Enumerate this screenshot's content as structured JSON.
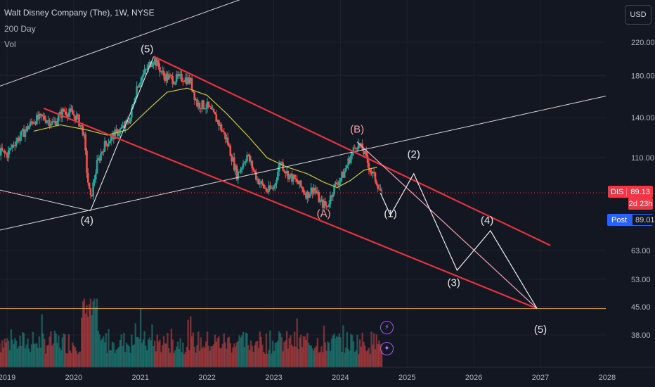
{
  "header": {
    "title": "Walt Disney Company (The), 1W, NYSE",
    "indicator_ma": "200 Day",
    "indicator_vol": "Vol"
  },
  "currency_button": "USD",
  "price_tags": {
    "ticker": "DIS",
    "last_price": "89.13",
    "countdown": "2d 23h",
    "post_label": "Post",
    "post_price": "89.01"
  },
  "side_icons": [
    "lightning-icon",
    "sparkle-icon"
  ],
  "chart_data": {
    "type": "candlestick",
    "title": "Walt Disney Company (The), 1W, NYSE",
    "y_scale": "log",
    "y_ticks": [
      220,
      180,
      140,
      110,
      63,
      53,
      45,
      38
    ],
    "y_tick_labels": [
      "220.00",
      "180.00",
      "140.00",
      "110.00",
      "63.00",
      "53.00",
      "45.00",
      "38.00"
    ],
    "x_ticks": [
      2019,
      2020,
      2021,
      2022,
      2023,
      2024,
      2025,
      2026,
      2027,
      2028
    ],
    "x_tick_labels": [
      "2019",
      "2020",
      "2021",
      "2022",
      "2023",
      "2024",
      "2025",
      "2026",
      "2027",
      "2028"
    ],
    "last_price": 89.13,
    "post_price": 89.01,
    "horizontal_line": 44.5,
    "price_path": [
      [
        2018.85,
        115
      ],
      [
        2019.0,
        112
      ],
      [
        2019.1,
        120
      ],
      [
        2019.25,
        128
      ],
      [
        2019.4,
        138
      ],
      [
        2019.55,
        140
      ],
      [
        2019.7,
        135
      ],
      [
        2019.85,
        146
      ],
      [
        2019.95,
        144
      ],
      [
        2020.05,
        140
      ],
      [
        2020.15,
        128
      ],
      [
        2020.2,
        100
      ],
      [
        2020.25,
        85
      ],
      [
        2020.35,
        106
      ],
      [
        2020.45,
        118
      ],
      [
        2020.6,
        126
      ],
      [
        2020.75,
        132
      ],
      [
        2020.85,
        140
      ],
      [
        2020.95,
        170
      ],
      [
        2021.05,
        182
      ],
      [
        2021.2,
        200
      ],
      [
        2021.35,
        180
      ],
      [
        2021.5,
        176
      ],
      [
        2021.65,
        178
      ],
      [
        2021.75,
        174
      ],
      [
        2021.85,
        152
      ],
      [
        2022.0,
        150
      ],
      [
        2022.15,
        138
      ],
      [
        2022.3,
        122
      ],
      [
        2022.45,
        99
      ],
      [
        2022.6,
        112
      ],
      [
        2022.75,
        97
      ],
      [
        2022.9,
        90
      ],
      [
        2023.0,
        92
      ],
      [
        2023.1,
        108
      ],
      [
        2023.2,
        100
      ],
      [
        2023.35,
        95
      ],
      [
        2023.5,
        88
      ],
      [
        2023.6,
        92
      ],
      [
        2023.7,
        84
      ],
      [
        2023.8,
        82
      ],
      [
        2023.9,
        92
      ],
      [
        2024.05,
        100
      ],
      [
        2024.15,
        111
      ],
      [
        2024.25,
        120
      ],
      [
        2024.35,
        114
      ],
      [
        2024.45,
        102
      ],
      [
        2024.55,
        95
      ],
      [
        2024.62,
        88
      ]
    ],
    "moving_average": {
      "name": "200 Day",
      "color": "#c9c93a",
      "points": [
        [
          2019.4,
          129
        ],
        [
          2019.8,
          134
        ],
        [
          2020.2,
          130
        ],
        [
          2020.5,
          126
        ],
        [
          2020.8,
          130
        ],
        [
          2021.1,
          146
        ],
        [
          2021.4,
          163
        ],
        [
          2021.7,
          167
        ],
        [
          2022.0,
          160
        ],
        [
          2022.3,
          143
        ],
        [
          2022.6,
          126
        ],
        [
          2022.9,
          110
        ],
        [
          2023.2,
          104
        ],
        [
          2023.5,
          100
        ],
        [
          2023.75,
          95
        ],
        [
          2023.95,
          92
        ],
        [
          2024.15,
          96
        ],
        [
          2024.35,
          102
        ],
        [
          2024.55,
          104
        ]
      ]
    },
    "channel": {
      "color": "#e0343f",
      "upper": [
        [
          2021.2,
          202
        ],
        [
          2027.15,
          65
        ]
      ],
      "lower_start": [
        2019.55,
        148
      ],
      "lower_end": [
        2026.95,
        44.5
      ]
    },
    "wave_labels": [
      {
        "text": "(5)",
        "x": 2021.1,
        "y": 207,
        "color": "#e8e8e8"
      },
      {
        "text": "(4)",
        "x": 2020.2,
        "y": 74,
        "color": "#e8e8e8"
      },
      {
        "text": "(B)",
        "x": 2024.25,
        "y": 128,
        "color": "#f4a3a3"
      },
      {
        "text": "(A)",
        "x": 2023.75,
        "y": 77,
        "color": "#f4a3a3"
      },
      {
        "text": "(1)",
        "x": 2024.75,
        "y": 77,
        "color": "#e8e8e8"
      },
      {
        "text": "(2)",
        "x": 2025.1,
        "y": 110,
        "color": "#e8e8e8"
      },
      {
        "text": "(3)",
        "x": 2025.7,
        "y": 51,
        "color": "#e8e8e8"
      },
      {
        "text": "(4)",
        "x": 2026.2,
        "y": 74,
        "color": "#e8e8e8"
      },
      {
        "text": "(5)",
        "x": 2027.0,
        "y": 38.5,
        "color": "#e8e8e8"
      }
    ],
    "projection_path": [
      [
        2024.6,
        89
      ],
      [
        2024.75,
        78
      ],
      [
        2025.1,
        100
      ],
      [
        2025.75,
        56
      ],
      [
        2026.25,
        71
      ],
      [
        2026.95,
        44.5
      ]
    ],
    "abc_path": [
      [
        2020.25,
        80
      ],
      [
        2021.2,
        202
      ]
    ],
    "pink_line": [
      [
        2024.25,
        121
      ],
      [
        2026.95,
        44.5
      ]
    ],
    "white_lines": [
      {
        "from": [
          2018.85,
          91
        ],
        "to": [
          2020.25,
          80
        ]
      },
      {
        "from": [
          2018.85,
          71
        ],
        "to": [
          2028.1,
          161
        ]
      },
      {
        "from": [
          2018.85,
          168
        ],
        "to": [
          2023.6,
          333
        ]
      }
    ]
  }
}
